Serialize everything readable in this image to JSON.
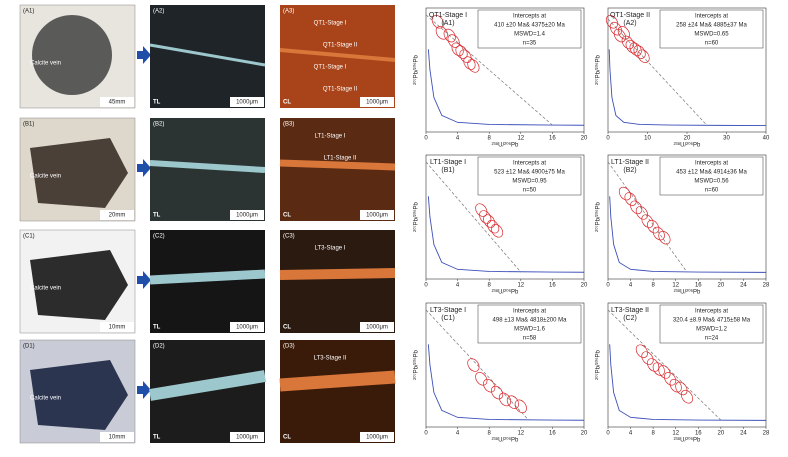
{
  "photos": [
    {
      "sample": {
        "label": "(A1)",
        "vein": "Calcite vein",
        "scale": "45mm"
      },
      "tl": {
        "label": "(A2)",
        "mode": "TL",
        "scale": "1000μm"
      },
      "cl": {
        "label": "(A3)",
        "mode": "CL",
        "scale": "1000μm",
        "stages": [
          "QT1-Stage I",
          "QT1-Stage II",
          "QT1-Stage I",
          "QT1-Stage II"
        ]
      }
    },
    {
      "sample": {
        "label": "(B1)",
        "vein": "Calcite vein",
        "scale": "20mm"
      },
      "tl": {
        "label": "(B2)",
        "mode": "TL",
        "scale": "1000μm"
      },
      "cl": {
        "label": "(B3)",
        "mode": "CL",
        "scale": "1000μm",
        "stages": [
          "LT1-Stage I",
          "LT1-Stage II"
        ]
      }
    },
    {
      "sample": {
        "label": "(C1)",
        "vein": "Calcite vein",
        "scale": "10mm"
      },
      "tl": {
        "label": "(C2)",
        "mode": "TL",
        "scale": "1000μm"
      },
      "cl": {
        "label": "(C3)",
        "mode": "CL",
        "scale": "1000μm",
        "stages": [
          "LT3-Stage I"
        ]
      }
    },
    {
      "sample": {
        "label": "(D1)",
        "vein": "Calcite vein",
        "scale": "10mm"
      },
      "tl": {
        "label": "(D2)",
        "mode": "TL",
        "scale": "1000μm"
      },
      "cl": {
        "label": "(D3)",
        "mode": "CL",
        "scale": "1000μm",
        "stages": [
          "LT3-Stage II"
        ]
      }
    }
  ],
  "chart_data": [
    {
      "type": "scatter",
      "stage": "QT1-Stage I",
      "panel": "(A1)",
      "intercept_title": "Intercepts at",
      "intercepts": "410 ±20 Ma& 4375±20 Ma",
      "mswd": "MSWD=1.4",
      "n": "n=35",
      "x_label": "²³⁸U/²⁰⁶Pb",
      "y_label": "²⁰⁷Pb/²⁰⁶Pb",
      "xlim": [
        0,
        20
      ],
      "xticks": [
        0,
        4,
        8,
        12,
        16,
        20
      ],
      "ylim": [
        0,
        0.9
      ],
      "color": "#d9262b",
      "x": [
        1.5,
        2,
        3,
        3.5,
        4,
        4.5,
        5,
        5.5,
        6
      ],
      "y": [
        0.8,
        0.72,
        0.7,
        0.66,
        0.6,
        0.58,
        0.55,
        0.5,
        0.48
      ],
      "discordia": {
        "x": [
          0,
          16
        ],
        "y": [
          0.85,
          0.05
        ]
      },
      "concordia": {
        "x": [
          0.3,
          0.5,
          1,
          2,
          4,
          8,
          16,
          20
        ],
        "y": [
          0.6,
          0.45,
          0.25,
          0.12,
          0.07,
          0.055,
          0.05,
          0.049
        ]
      }
    },
    {
      "type": "scatter",
      "stage": "QT1-Stage II",
      "panel": "(A2)",
      "intercept_title": "Intercepts at",
      "intercepts": "258 ±24 Ma& 4885±37 Ma",
      "mswd": "MSWD=0.65",
      "n": "n=60",
      "x_label": "²³⁸U/²⁰⁶Pb",
      "y_label": "²⁰⁷Pb/²⁰⁶Pb",
      "xlim": [
        0,
        40
      ],
      "xticks": [
        0,
        10,
        20,
        30,
        40
      ],
      "ylim": [
        0,
        0.9
      ],
      "color": "#d9262b",
      "x": [
        1,
        2,
        3,
        4,
        5,
        6,
        7,
        8,
        9
      ],
      "y": [
        0.8,
        0.75,
        0.7,
        0.72,
        0.65,
        0.62,
        0.6,
        0.58,
        0.55
      ],
      "discordia": {
        "x": [
          0,
          25
        ],
        "y": [
          0.82,
          0.05
        ]
      },
      "concordia": {
        "x": [
          0.3,
          0.5,
          1,
          2,
          4,
          8,
          16,
          28,
          40
        ],
        "y": [
          0.6,
          0.45,
          0.25,
          0.12,
          0.07,
          0.055,
          0.05,
          0.048,
          0.047
        ]
      }
    },
    {
      "type": "scatter",
      "stage": "LT1-Stage I",
      "panel": "(B1)",
      "intercept_title": "Intercepts at",
      "intercepts": "523 ±12 Ma& 4900±75 Ma",
      "mswd": "MSWD=0.95",
      "n": "n=50",
      "x_label": "²³⁸U/²⁰⁶Pb",
      "y_label": "²⁰⁷Pb/²⁰⁶Pb",
      "xlim": [
        0,
        20
      ],
      "xticks": [
        0,
        4,
        8,
        12,
        16,
        20
      ],
      "ylim": [
        0,
        0.9
      ],
      "color": "#d9262b",
      "x": [
        7,
        7.5,
        8,
        8.5,
        9
      ],
      "y": [
        0.5,
        0.45,
        0.42,
        0.38,
        0.35
      ],
      "discordia": {
        "x": [
          0,
          12
        ],
        "y": [
          0.85,
          0.05
        ]
      },
      "concordia": {
        "x": [
          0.3,
          0.5,
          1,
          2,
          4,
          8,
          16,
          20
        ],
        "y": [
          0.6,
          0.45,
          0.25,
          0.12,
          0.07,
          0.055,
          0.05,
          0.049
        ]
      }
    },
    {
      "type": "scatter",
      "stage": "LT1-Stage II",
      "panel": "(B2)",
      "intercept_title": "Intercepts at",
      "intercepts": "453 ±12 Ma& 4914±36 Ma",
      "mswd": "MSWD=0.56",
      "n": "n=60",
      "x_label": "²³⁸U/²⁰⁶Pb",
      "y_label": "²⁰⁷Pb/²⁰⁶Pb",
      "xlim": [
        0,
        28
      ],
      "xticks": [
        0,
        4,
        8,
        12,
        16,
        20,
        24,
        28
      ],
      "ylim": [
        0,
        0.9
      ],
      "color": "#d9262b",
      "x": [
        3,
        4,
        5,
        6,
        7,
        8,
        9,
        10
      ],
      "y": [
        0.62,
        0.58,
        0.52,
        0.48,
        0.42,
        0.38,
        0.33,
        0.3
      ],
      "discordia": {
        "x": [
          0,
          14
        ],
        "y": [
          0.85,
          0.05
        ]
      },
      "concordia": {
        "x": [
          0.3,
          0.5,
          1,
          2,
          4,
          8,
          16,
          28
        ],
        "y": [
          0.6,
          0.45,
          0.25,
          0.12,
          0.07,
          0.055,
          0.05,
          0.048
        ]
      }
    },
    {
      "type": "scatter",
      "stage": "LT3-Stage I",
      "panel": "(C1)",
      "intercept_title": "Intercepts at",
      "intercepts": "498 ±13 Ma& 4818±200 Ma",
      "mswd": "MSWD=1.6",
      "n": "n=58",
      "x_label": "²³⁸U/²⁰⁶Pb",
      "y_label": "²⁰⁷Pb/²⁰⁶Pb",
      "xlim": [
        0,
        20
      ],
      "xticks": [
        0,
        4,
        8,
        12,
        16,
        20
      ],
      "ylim": [
        0,
        0.9
      ],
      "color": "#d9262b",
      "x": [
        6,
        7,
        8,
        9,
        10,
        11,
        12
      ],
      "y": [
        0.45,
        0.35,
        0.3,
        0.25,
        0.2,
        0.18,
        0.15
      ],
      "discordia": {
        "x": [
          0,
          13
        ],
        "y": [
          0.85,
          0.05
        ]
      },
      "concordia": {
        "x": [
          0.3,
          0.5,
          1,
          2,
          4,
          8,
          16,
          20
        ],
        "y": [
          0.6,
          0.45,
          0.25,
          0.12,
          0.07,
          0.055,
          0.05,
          0.049
        ]
      }
    },
    {
      "type": "scatter",
      "stage": "LT3-Stage II",
      "panel": "(C2)",
      "intercept_title": "Intercepts at",
      "intercepts": "320.4 ±8.9 Ma& 4715±58 Ma",
      "mswd": "MSWD=1.2",
      "n": "n=24",
      "x_label": "²³⁸U/²⁰⁶Pb",
      "y_label": "²⁰⁷Pb/²⁰⁶Pb",
      "xlim": [
        0,
        28
      ],
      "xticks": [
        0,
        4,
        8,
        12,
        16,
        20,
        24,
        28
      ],
      "ylim": [
        0,
        0.9
      ],
      "color": "#d9262b",
      "x": [
        6,
        7,
        8,
        9,
        10,
        11,
        12,
        13,
        14
      ],
      "y": [
        0.55,
        0.5,
        0.45,
        0.42,
        0.4,
        0.35,
        0.3,
        0.28,
        0.22
      ],
      "discordia": {
        "x": [
          0,
          20
        ],
        "y": [
          0.85,
          0.05
        ]
      },
      "concordia": {
        "x": [
          0.3,
          0.5,
          1,
          2,
          4,
          8,
          16,
          28
        ],
        "y": [
          0.6,
          0.45,
          0.25,
          0.12,
          0.07,
          0.055,
          0.05,
          0.048
        ]
      }
    }
  ]
}
